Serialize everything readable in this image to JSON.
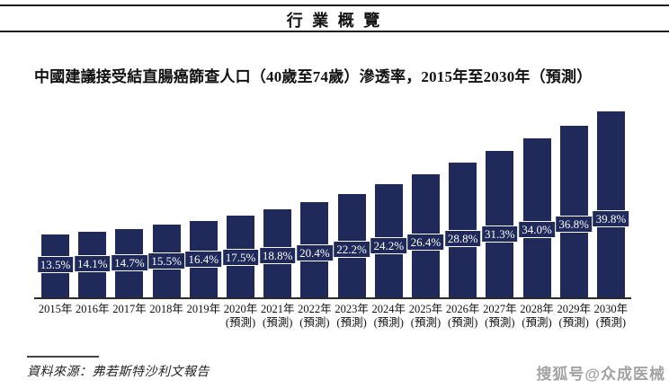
{
  "page": {
    "header_title": "行 業 概 覽",
    "source_label": "資料來源：弗若斯特沙利文報告",
    "watermark_text": "搜狐号@众成医械"
  },
  "chart_data": {
    "type": "bar",
    "title": "中國建議接受結直腸癌篩查人口（40歲至74歲）滲透率，2015年至2030年（預測）",
    "categories": [
      "2015年",
      "2016年",
      "2017年",
      "2018年",
      "2019年",
      "2020年",
      "2021年",
      "2022年",
      "2023年",
      "2024年",
      "2025年",
      "2026年",
      "2027年",
      "2028年",
      "2029年",
      "2030年"
    ],
    "category_notes": [
      "",
      "",
      "",
      "",
      "",
      "(預測)",
      "(預測)",
      "(預測)",
      "(預測)",
      "(預測)",
      "(預測)",
      "(預測)",
      "(預測)",
      "(預測)",
      "(預測)",
      "(預測)"
    ],
    "values": [
      13.5,
      14.1,
      14.7,
      15.5,
      16.4,
      17.5,
      18.8,
      20.4,
      22.2,
      24.2,
      26.4,
      28.8,
      31.3,
      34.0,
      36.8,
      39.8
    ],
    "value_labels": [
      "13.5%",
      "14.1%",
      "14.7%",
      "15.5%",
      "16.4%",
      "17.5%",
      "18.8%",
      "20.4%",
      "22.2%",
      "24.2%",
      "26.4%",
      "28.8%",
      "31.3%",
      "34.0%",
      "36.8%",
      "39.8%"
    ],
    "unit": "%",
    "ylim": [
      0,
      43
    ],
    "grid": "off",
    "legend": "none",
    "bar_color": "#1F2A5B",
    "value_label_text_color": "#FFFFFF"
  }
}
